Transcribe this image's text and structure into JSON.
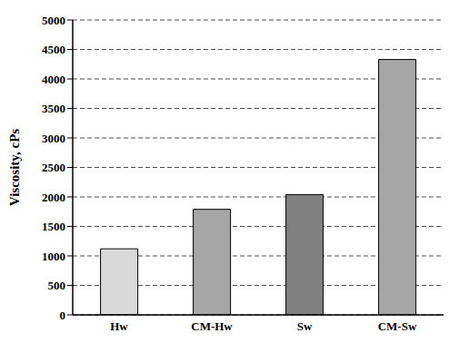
{
  "chart_data": {
    "type": "bar",
    "y_label": "Viscosity, cPs",
    "categories": [
      "Hw",
      "CM-Hw",
      "Sw",
      "CM-Sw"
    ],
    "values": [
      1120,
      1790,
      2040,
      4330
    ],
    "colors": [
      "#d9d9d9",
      "#a6a6a6",
      "#808080",
      "#a6a6a6"
    ],
    "ylim": [
      0,
      5000
    ],
    "yticks": [
      0,
      500,
      1000,
      1500,
      2000,
      2500,
      3000,
      3500,
      4000,
      4500,
      5000
    ],
    "grid": true
  }
}
